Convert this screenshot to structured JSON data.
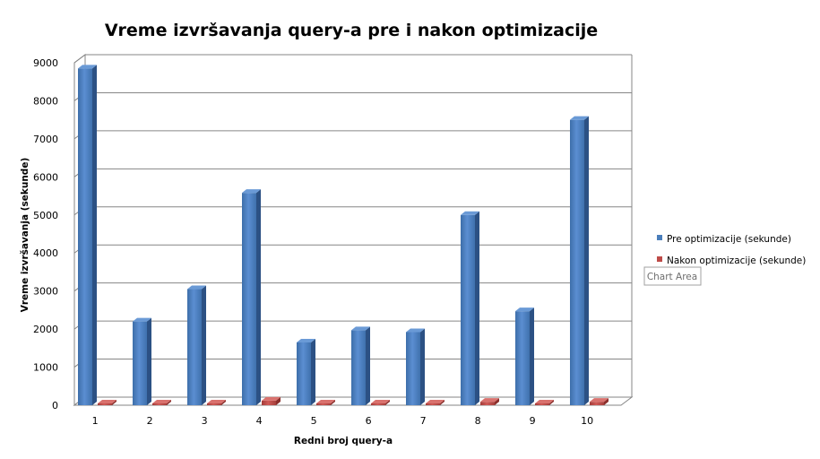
{
  "chart_data": {
    "type": "bar",
    "title": "Vreme izvršavanja query-a pre i nakon optimizacije",
    "xlabel": "Redni broj query-a",
    "ylabel": "Vreme izvršavanja  (sekunde)",
    "categories": [
      "1",
      "2",
      "3",
      "4",
      "5",
      "6",
      "7",
      "8",
      "9",
      "10"
    ],
    "series": [
      {
        "name": "Pre optimizacije (sekunde)",
        "color": "#4a7ebb",
        "values": [
          8850,
          2200,
          3050,
          5580,
          1650,
          1970,
          1920,
          5000,
          2470,
          7500
        ]
      },
      {
        "name": "Nakon optimizacije (sekunde)",
        "color": "#be4b48",
        "values": [
          30,
          20,
          20,
          120,
          20,
          20,
          15,
          90,
          10,
          90
        ]
      }
    ],
    "ylim": [
      0,
      9000
    ],
    "yticks": [
      "0",
      "1000",
      "2000",
      "3000",
      "4000",
      "5000",
      "6000",
      "7000",
      "8000",
      "9000"
    ],
    "grid": true,
    "legend_position": "right",
    "bar_style": "3d-column"
  },
  "tooltip": {
    "label": "Chart Area"
  }
}
